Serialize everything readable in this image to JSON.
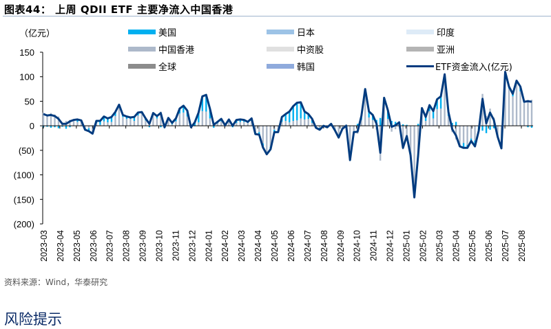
{
  "title": "图表44：  上周 QDII ETF 主要净流入中国香港",
  "unit": "（亿元）",
  "source": "资料来源：Wind，华泰研究",
  "risk_heading": "风险提示",
  "legend": [
    {
      "label": "美国",
      "color": "#00b0f0",
      "type": "bar"
    },
    {
      "label": "日本",
      "color": "#9dc3e6",
      "type": "bar"
    },
    {
      "label": "印度",
      "color": "#deebf7",
      "type": "bar"
    },
    {
      "label": "中国香港",
      "color": "#adb9ca",
      "type": "bar"
    },
    {
      "label": "中资股",
      "color": "#e0e0e0",
      "type": "bar"
    },
    {
      "label": "亚洲",
      "color": "#b4b4b4",
      "type": "bar"
    },
    {
      "label": "全球",
      "color": "#8c8c8c",
      "type": "bar"
    },
    {
      "label": "韩国",
      "color": "#8faadc",
      "type": "bar"
    },
    {
      "label": "ETF资金流入(亿元)",
      "color": "#003b7f",
      "type": "line"
    }
  ],
  "chart_data": {
    "type": "bar+line",
    "ylim": [
      -200,
      150
    ],
    "yticks": [
      "150",
      "100",
      "50",
      "0",
      "(50)",
      "(100)",
      "(150)",
      "(200)"
    ],
    "ytick_values": [
      150,
      100,
      50,
      0,
      -50,
      -100,
      -150,
      -200
    ],
    "xtick_labels": [
      "2023-03",
      "2023-04",
      "2023-05",
      "2023-06",
      "2023-07",
      "2023-08",
      "2023-09",
      "2023-10",
      "2023-11",
      "2023-12",
      "2024-01",
      "2024-02",
      "2024-03",
      "2024-04",
      "2024-05",
      "2024-06",
      "2024-07",
      "2024-08",
      "2024-09",
      "2024-10",
      "2024-11",
      "2024-12",
      "2025-01",
      "2025-02",
      "2025-03",
      "2025-04",
      "2025-05",
      "2025-06",
      "2025-07",
      "2025-08"
    ],
    "frequency": "weekly",
    "first_week": "2023-03-03",
    "grid": false,
    "legend_position": "top",
    "series": [
      {
        "name": "ETF资金流入(亿元)",
        "type": "line",
        "values": [
          24,
          21,
          22,
          20,
          14,
          4,
          4,
          9,
          12,
          13,
          11,
          -8,
          -11,
          -16,
          10,
          10,
          19,
          15,
          18,
          28,
          43,
          22,
          19,
          17,
          18,
          27,
          28,
          15,
          4,
          26,
          20,
          26,
          -3,
          16,
          6,
          15,
          35,
          41,
          31,
          -3,
          7,
          27,
          60,
          63,
          35,
          2,
          8,
          14,
          1,
          13,
          0,
          12,
          13,
          12,
          8,
          15,
          -17,
          -18,
          -44,
          -58,
          -48,
          -13,
          -13,
          18,
          24,
          29,
          40,
          47,
          48,
          29,
          24,
          14,
          -4,
          -8,
          0,
          -3,
          4,
          -9,
          -24,
          -6,
          0,
          -70,
          -13,
          -12,
          20,
          75,
          29,
          22,
          4,
          -55,
          57,
          32,
          -2,
          1,
          7,
          -45,
          -21,
          -60,
          -146,
          -60,
          36,
          18,
          42,
          30,
          54,
          60,
          105,
          28,
          -7,
          -20,
          -42,
          -45,
          -45,
          -31,
          -42,
          -10,
          55,
          5,
          27,
          12,
          -22,
          -46,
          110,
          80,
          65,
          92,
          80,
          49,
          50,
          49
        ]
      },
      {
        "name": "美国",
        "type": "bar",
        "values": [
          -3,
          -2,
          -4,
          -3,
          -5,
          -2,
          -6,
          -3,
          2,
          5,
          3,
          -4,
          -6,
          -3,
          5,
          8,
          10,
          8,
          10,
          8,
          6,
          4,
          5,
          3,
          8,
          6,
          3,
          4,
          -3,
          4,
          5,
          -3,
          -5,
          4,
          3,
          6,
          10,
          14,
          12,
          -2,
          8,
          20,
          30,
          34,
          20,
          -4,
          3,
          5,
          3,
          5,
          -3,
          6,
          5,
          4,
          2,
          5,
          -3,
          -5,
          -8,
          -4,
          -5,
          -5,
          -3,
          10,
          14,
          22,
          30,
          36,
          33,
          16,
          10,
          8,
          -2,
          -4,
          0,
          -2,
          3,
          -3,
          -6,
          -2,
          -3,
          -5,
          -2,
          4,
          8,
          14,
          12,
          10,
          12,
          16,
          12,
          18,
          10,
          8,
          5,
          3,
          2,
          -5,
          -3,
          4,
          5,
          8,
          12,
          15,
          20,
          25,
          10,
          8,
          6,
          8,
          -2,
          -10,
          -6,
          -5,
          -12,
          -8,
          -10,
          -15,
          -8,
          -5,
          -3,
          -2,
          5,
          4,
          5,
          6,
          10,
          2,
          -3,
          -4
        ]
      }
    ]
  }
}
